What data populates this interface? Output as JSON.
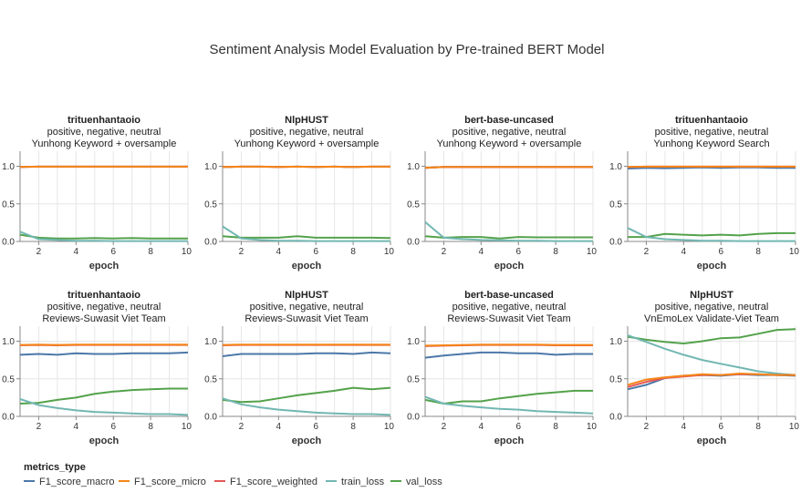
{
  "title": "Sentiment Analysis Model Evaluation by Pre-trained BERT Model",
  "legend": {
    "title": "metrics_type",
    "items": [
      {
        "name": "F1_score_macro",
        "color": "#4c78a8"
      },
      {
        "name": "F1_score_micro",
        "color": "#f58518"
      },
      {
        "name": "F1_score_weighted",
        "color": "#e45756"
      },
      {
        "name": "train_loss",
        "color": "#72b7b2"
      },
      {
        "name": "val_loss",
        "color": "#54a24b"
      }
    ]
  },
  "chart_data": [
    {
      "type": "line",
      "title": [
        "trituenhantaoio",
        "positive, negative, neutral",
        "Yunhong Keyword + oversample"
      ],
      "xlabel": "epoch",
      "x": [
        1,
        2,
        3,
        4,
        5,
        6,
        7,
        8,
        9,
        10
      ],
      "xticks": [
        2,
        4,
        6,
        8,
        10
      ],
      "ylim": [
        0,
        1.2
      ],
      "yticks": [
        "0.0",
        "0.5",
        "1.0"
      ],
      "series": [
        {
          "name": "F1_score_macro",
          "values": [
            0.99,
            0.995,
            0.995,
            0.995,
            0.995,
            0.995,
            0.995,
            0.995,
            0.995,
            0.995
          ]
        },
        {
          "name": "F1_score_micro",
          "values": [
            0.99,
            0.995,
            0.995,
            0.995,
            0.995,
            0.995,
            0.995,
            0.995,
            0.995,
            0.995
          ]
        },
        {
          "name": "F1_score_weighted",
          "values": [
            0.99,
            0.995,
            0.995,
            0.995,
            0.995,
            0.995,
            0.995,
            0.995,
            0.995,
            0.995
          ]
        },
        {
          "name": "train_loss",
          "values": [
            0.13,
            0.03,
            0.02,
            0.01,
            0.01,
            0.005,
            0.005,
            0.005,
            0.005,
            0.005
          ]
        },
        {
          "name": "val_loss",
          "values": [
            0.09,
            0.05,
            0.04,
            0.04,
            0.045,
            0.04,
            0.045,
            0.04,
            0.04,
            0.04
          ]
        }
      ]
    },
    {
      "type": "line",
      "title": [
        "NlpHUST",
        "positive, negative, neutral",
        "Yunhong Keyword + oversample"
      ],
      "xlabel": "epoch",
      "x": [
        1,
        2,
        3,
        4,
        5,
        6,
        7,
        8,
        9,
        10
      ],
      "xticks": [
        2,
        4,
        6,
        8,
        10
      ],
      "ylim": [
        0,
        1.2
      ],
      "yticks": [
        "0.0",
        "0.5",
        "1.0"
      ],
      "series": [
        {
          "name": "F1_score_macro",
          "values": [
            0.99,
            0.995,
            0.995,
            0.99,
            0.995,
            0.99,
            0.995,
            0.99,
            0.995,
            0.995
          ]
        },
        {
          "name": "F1_score_micro",
          "values": [
            0.99,
            0.995,
            0.995,
            0.99,
            0.995,
            0.99,
            0.995,
            0.99,
            0.995,
            0.995
          ]
        },
        {
          "name": "F1_score_weighted",
          "values": [
            0.99,
            0.995,
            0.995,
            0.99,
            0.995,
            0.99,
            0.995,
            0.99,
            0.995,
            0.995
          ]
        },
        {
          "name": "train_loss",
          "values": [
            0.2,
            0.04,
            0.02,
            0.01,
            0.01,
            0.005,
            0.005,
            0.005,
            0.005,
            0.005
          ]
        },
        {
          "name": "val_loss",
          "values": [
            0.07,
            0.05,
            0.05,
            0.05,
            0.07,
            0.05,
            0.05,
            0.05,
            0.05,
            0.045
          ]
        }
      ]
    },
    {
      "type": "line",
      "title": [
        "bert-base-uncased",
        "positive, negative, neutral",
        "Yunhong Keyword + oversample"
      ],
      "xlabel": "epoch",
      "x": [
        1,
        2,
        3,
        4,
        5,
        6,
        7,
        8,
        9,
        10
      ],
      "xticks": [
        2,
        4,
        6,
        8,
        10
      ],
      "ylim": [
        0,
        1.2
      ],
      "yticks": [
        "0.0",
        "0.5",
        "1.0"
      ],
      "series": [
        {
          "name": "F1_score_macro",
          "values": [
            0.98,
            0.99,
            0.99,
            0.99,
            0.99,
            0.99,
            0.99,
            0.99,
            0.99,
            0.99
          ]
        },
        {
          "name": "F1_score_micro",
          "values": [
            0.98,
            0.99,
            0.99,
            0.99,
            0.99,
            0.99,
            0.99,
            0.99,
            0.99,
            0.99
          ]
        },
        {
          "name": "F1_score_weighted",
          "values": [
            0.98,
            0.99,
            0.99,
            0.99,
            0.99,
            0.99,
            0.99,
            0.99,
            0.99,
            0.99
          ]
        },
        {
          "name": "train_loss",
          "values": [
            0.26,
            0.05,
            0.03,
            0.02,
            0.015,
            0.01,
            0.01,
            0.005,
            0.005,
            0.005
          ]
        },
        {
          "name": "val_loss",
          "values": [
            0.07,
            0.05,
            0.06,
            0.06,
            0.04,
            0.06,
            0.055,
            0.055,
            0.055,
            0.055
          ]
        }
      ]
    },
    {
      "type": "line",
      "title": [
        "trituenhantaoio",
        "positive, negative, neutral",
        "Yunhong Keyword Search"
      ],
      "xlabel": "epoch",
      "x": [
        1,
        2,
        3,
        4,
        5,
        6,
        7,
        8,
        9,
        10
      ],
      "xticks": [
        2,
        4,
        6,
        8,
        10
      ],
      "ylim": [
        0,
        1.2
      ],
      "yticks": [
        "0.0",
        "0.5",
        "1.0"
      ],
      "series": [
        {
          "name": "F1_score_macro",
          "values": [
            0.97,
            0.98,
            0.975,
            0.98,
            0.985,
            0.98,
            0.985,
            0.985,
            0.98,
            0.98
          ]
        },
        {
          "name": "F1_score_micro",
          "values": [
            0.99,
            0.995,
            0.995,
            0.995,
            0.995,
            0.995,
            0.995,
            0.995,
            0.995,
            0.995
          ]
        },
        {
          "name": "F1_score_weighted",
          "values": [
            0.99,
            0.995,
            0.995,
            0.995,
            0.995,
            0.995,
            0.995,
            0.995,
            0.995,
            0.995
          ]
        },
        {
          "name": "train_loss",
          "values": [
            0.18,
            0.06,
            0.03,
            0.02,
            0.01,
            0.01,
            0.005,
            0.005,
            0.005,
            0.005
          ]
        },
        {
          "name": "val_loss",
          "values": [
            0.06,
            0.06,
            0.1,
            0.09,
            0.08,
            0.09,
            0.08,
            0.1,
            0.11,
            0.11
          ]
        }
      ]
    },
    {
      "type": "line",
      "title": [
        "trituenhantaoio",
        "positive, negative, neutral",
        "Reviews-Suwasit Viet Team"
      ],
      "xlabel": "epoch",
      "x": [
        1,
        2,
        3,
        4,
        5,
        6,
        7,
        8,
        9,
        10
      ],
      "xticks": [
        2,
        4,
        6,
        8,
        10
      ],
      "ylim": [
        0,
        1.2
      ],
      "yticks": [
        "0.0",
        "0.5",
        "1.0"
      ],
      "series": [
        {
          "name": "F1_score_macro",
          "values": [
            0.82,
            0.83,
            0.82,
            0.84,
            0.83,
            0.83,
            0.84,
            0.84,
            0.84,
            0.85
          ]
        },
        {
          "name": "F1_score_micro",
          "values": [
            0.95,
            0.955,
            0.95,
            0.955,
            0.955,
            0.955,
            0.955,
            0.955,
            0.955,
            0.955
          ]
        },
        {
          "name": "F1_score_weighted",
          "values": [
            0.945,
            0.95,
            0.945,
            0.95,
            0.95,
            0.95,
            0.95,
            0.95,
            0.95,
            0.95
          ]
        },
        {
          "name": "train_loss",
          "values": [
            0.23,
            0.15,
            0.11,
            0.08,
            0.06,
            0.05,
            0.04,
            0.03,
            0.03,
            0.02
          ]
        },
        {
          "name": "val_loss",
          "values": [
            0.17,
            0.18,
            0.22,
            0.25,
            0.3,
            0.33,
            0.35,
            0.36,
            0.37,
            0.37
          ]
        }
      ]
    },
    {
      "type": "line",
      "title": [
        "NlpHUST",
        "positive, negative, neutral",
        "Reviews-Suwasit Viet Team"
      ],
      "xlabel": "epoch",
      "x": [
        1,
        2,
        3,
        4,
        5,
        6,
        7,
        8,
        9,
        10
      ],
      "xticks": [
        2,
        4,
        6,
        8,
        10
      ],
      "ylim": [
        0,
        1.2
      ],
      "yticks": [
        "0.0",
        "0.5",
        "1.0"
      ],
      "series": [
        {
          "name": "F1_score_macro",
          "values": [
            0.8,
            0.83,
            0.83,
            0.83,
            0.83,
            0.84,
            0.84,
            0.83,
            0.85,
            0.84
          ]
        },
        {
          "name": "F1_score_micro",
          "values": [
            0.95,
            0.955,
            0.955,
            0.955,
            0.955,
            0.955,
            0.955,
            0.955,
            0.955,
            0.955
          ]
        },
        {
          "name": "F1_score_weighted",
          "values": [
            0.945,
            0.95,
            0.95,
            0.95,
            0.95,
            0.95,
            0.95,
            0.95,
            0.95,
            0.95
          ]
        },
        {
          "name": "train_loss",
          "values": [
            0.24,
            0.16,
            0.12,
            0.09,
            0.07,
            0.05,
            0.04,
            0.03,
            0.03,
            0.02
          ]
        },
        {
          "name": "val_loss",
          "values": [
            0.22,
            0.19,
            0.2,
            0.24,
            0.28,
            0.31,
            0.34,
            0.38,
            0.36,
            0.38
          ]
        }
      ]
    },
    {
      "type": "line",
      "title": [
        "bert-base-uncased",
        "positive, negative, neutral",
        "Reviews-Suwasit Viet Team"
      ],
      "xlabel": "epoch",
      "x": [
        1,
        2,
        3,
        4,
        5,
        6,
        7,
        8,
        9,
        10
      ],
      "xticks": [
        2,
        4,
        6,
        8,
        10
      ],
      "ylim": [
        0,
        1.2
      ],
      "yticks": [
        "0.0",
        "0.5",
        "1.0"
      ],
      "series": [
        {
          "name": "F1_score_macro",
          "values": [
            0.78,
            0.81,
            0.83,
            0.85,
            0.85,
            0.84,
            0.84,
            0.82,
            0.83,
            0.83
          ]
        },
        {
          "name": "F1_score_micro",
          "values": [
            0.94,
            0.945,
            0.95,
            0.955,
            0.955,
            0.955,
            0.955,
            0.95,
            0.95,
            0.95
          ]
        },
        {
          "name": "F1_score_weighted",
          "values": [
            0.935,
            0.94,
            0.945,
            0.95,
            0.95,
            0.95,
            0.95,
            0.945,
            0.945,
            0.945
          ]
        },
        {
          "name": "train_loss",
          "values": [
            0.26,
            0.17,
            0.14,
            0.12,
            0.1,
            0.09,
            0.07,
            0.06,
            0.05,
            0.04
          ]
        },
        {
          "name": "val_loss",
          "values": [
            0.22,
            0.17,
            0.2,
            0.2,
            0.24,
            0.27,
            0.3,
            0.32,
            0.34,
            0.34
          ]
        }
      ]
    },
    {
      "type": "line",
      "title": [
        "NlpHUST",
        "positive, negative, neutral",
        "VnEmoLex Validate-Viet Team"
      ],
      "xlabel": "epoch",
      "x": [
        1,
        2,
        3,
        4,
        5,
        6,
        7,
        8,
        9,
        10
      ],
      "xticks": [
        2,
        4,
        6,
        8,
        10
      ],
      "ylim": [
        0,
        1.2
      ],
      "yticks": [
        "0.0",
        "0.5",
        "1.0"
      ],
      "series": [
        {
          "name": "F1_score_macro",
          "values": [
            0.36,
            0.42,
            0.51,
            0.54,
            0.55,
            0.54,
            0.56,
            0.55,
            0.55,
            0.54
          ]
        },
        {
          "name": "F1_score_micro",
          "values": [
            0.42,
            0.49,
            0.52,
            0.54,
            0.56,
            0.55,
            0.57,
            0.56,
            0.55,
            0.55
          ]
        },
        {
          "name": "F1_score_weighted",
          "values": [
            0.39,
            0.46,
            0.51,
            0.53,
            0.55,
            0.55,
            0.56,
            0.56,
            0.55,
            0.55
          ]
        },
        {
          "name": "train_loss",
          "values": [
            1.08,
            0.99,
            0.9,
            0.82,
            0.75,
            0.7,
            0.65,
            0.6,
            0.57,
            0.55
          ]
        },
        {
          "name": "val_loss",
          "values": [
            1.06,
            1.02,
            0.99,
            0.97,
            1.0,
            1.04,
            1.05,
            1.1,
            1.15,
            1.16
          ]
        }
      ]
    }
  ]
}
